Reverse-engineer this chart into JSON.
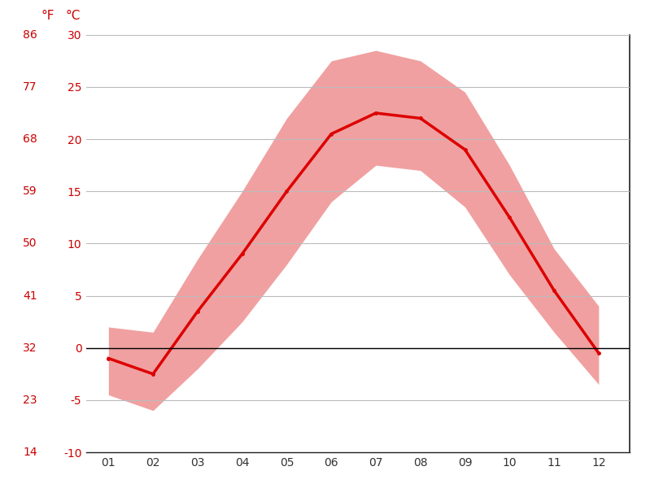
{
  "months": [
    1,
    2,
    3,
    4,
    5,
    6,
    7,
    8,
    9,
    10,
    11,
    12
  ],
  "month_labels": [
    "01",
    "02",
    "03",
    "04",
    "05",
    "06",
    "07",
    "08",
    "09",
    "10",
    "11",
    "12"
  ],
  "avg_temp_c": [
    -1.0,
    -2.5,
    3.5,
    9.0,
    15.0,
    20.5,
    22.5,
    22.0,
    19.0,
    12.5,
    5.5,
    -0.5
  ],
  "max_temp_c": [
    2.0,
    1.5,
    8.5,
    15.0,
    22.0,
    27.5,
    28.5,
    27.5,
    24.5,
    17.5,
    9.5,
    4.0
  ],
  "min_temp_c": [
    -4.5,
    -6.0,
    -2.0,
    2.5,
    8.0,
    14.0,
    17.5,
    17.0,
    13.5,
    7.0,
    1.5,
    -3.5
  ],
  "avg_line_color": "#dd0000",
  "band_color": "#f0a0a0",
  "zero_line_color": "#000000",
  "grid_color": "#bbbbbb",
  "label_color": "#cc0000",
  "tick_color": "#333333",
  "background_color": "#ffffff",
  "ylim_c": [
    -10,
    30
  ],
  "yticks_c": [
    -10,
    -5,
    0,
    5,
    10,
    15,
    20,
    25,
    30
  ],
  "yticks_f": [
    14,
    23,
    32,
    41,
    50,
    59,
    68,
    77,
    86
  ],
  "xlim": [
    0.5,
    12.7
  ],
  "figsize": [
    8.15,
    6.11
  ],
  "dpi": 100
}
